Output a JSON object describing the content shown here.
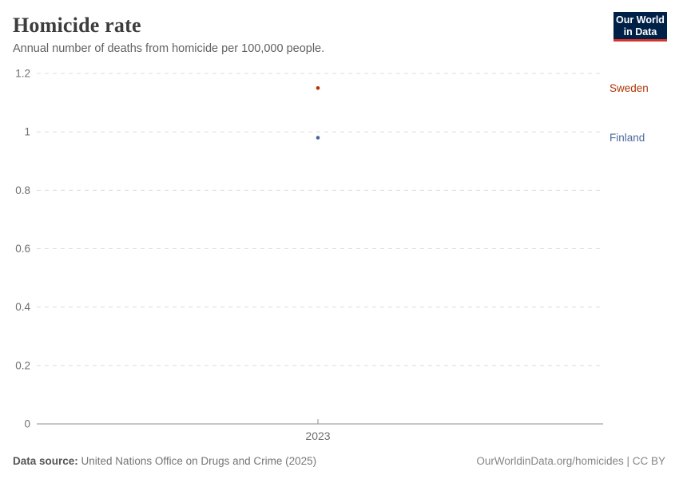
{
  "header": {
    "title": "Homicide rate",
    "subtitle": "Annual number of deaths from homicide per 100,000 people."
  },
  "logo": {
    "line1": "Our World",
    "line2": "in Data",
    "bg_color": "#002147",
    "accent_color": "#d4332a"
  },
  "footer": {
    "source_label": "Data source:",
    "source_text": " United Nations Office on Drugs and Crime (2025)",
    "credit": "OurWorldinData.org/homicides | CC BY"
  },
  "chart_data": {
    "type": "scatter",
    "x": [
      2023
    ],
    "x_tick_labels": [
      "2023"
    ],
    "series": [
      {
        "name": "Sweden",
        "values": [
          1.15
        ],
        "color": "#B13507"
      },
      {
        "name": "Finland",
        "values": [
          0.98
        ],
        "color": "#4C6A9C"
      }
    ],
    "title": "Homicide rate",
    "xlabel": "",
    "ylabel": "",
    "ylim": [
      0,
      1.2
    ],
    "y_ticks": [
      0,
      0.2,
      0.4,
      0.6,
      0.8,
      1,
      1.2
    ],
    "grid": "horizontal-dashed",
    "grid_color": "#dcdcdc",
    "axis_line_color": "#8f8f8f",
    "tick_label_color": "#6e6e6e",
    "legend_position": "right-entity-labels"
  }
}
